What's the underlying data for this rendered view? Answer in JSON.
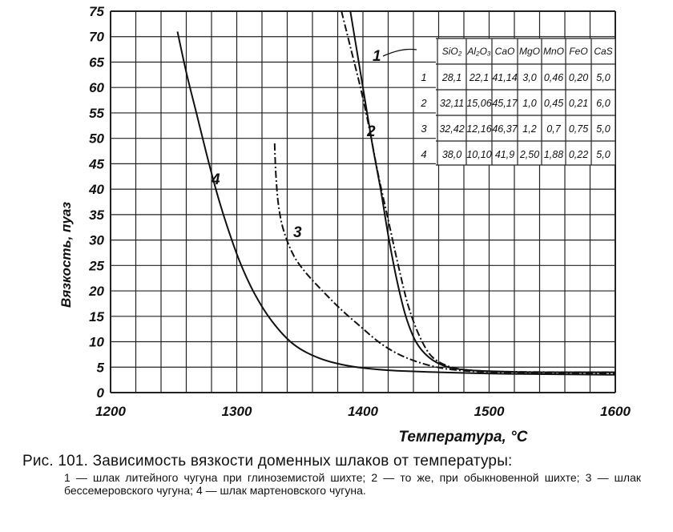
{
  "chart_data": {
    "type": "line",
    "xlabel": "Температура, °C",
    "ylabel": "Вязкость, пуаз",
    "xlim": [
      1200,
      1600
    ],
    "ylim": [
      0,
      75
    ],
    "x_ticks": [
      1200,
      1300,
      1400,
      1500,
      1600
    ],
    "y_ticks": [
      0,
      5,
      10,
      15,
      20,
      25,
      30,
      35,
      40,
      45,
      50,
      55,
      60,
      65,
      70,
      75
    ],
    "grid": true,
    "series": [
      {
        "name": "1",
        "style": "dash-dot",
        "x": [
          1383,
          1390,
          1398,
          1405,
          1412,
          1420,
          1428,
          1436,
          1445,
          1455,
          1470,
          1490,
          1520,
          1560,
          1600
        ],
        "y": [
          75,
          68,
          60,
          52,
          43,
          34,
          25,
          17,
          11,
          7,
          5,
          4.3,
          4.1,
          4.0,
          4.0
        ]
      },
      {
        "name": "2",
        "style": "solid",
        "x": [
          1390,
          1396,
          1402,
          1408,
          1414,
          1420,
          1427,
          1434,
          1442,
          1452,
          1465,
          1480,
          1500,
          1540,
          1600
        ],
        "y": [
          75,
          66,
          57,
          48,
          40,
          31,
          22,
          15,
          10,
          7,
          5.2,
          4.5,
          4.2,
          4.0,
          4.0
        ]
      },
      {
        "name": "3",
        "style": "dash-dot",
        "x": [
          1330,
          1331,
          1333,
          1337,
          1345,
          1355,
          1368,
          1382,
          1398,
          1415,
          1433,
          1455,
          1480,
          1520,
          1560,
          1600
        ],
        "y": [
          49,
          43,
          37,
          32,
          27,
          23.5,
          20,
          16.5,
          13,
          9.5,
          7,
          5.2,
          4.3,
          3.9,
          3.8,
          3.7
        ]
      },
      {
        "name": "4",
        "style": "solid",
        "x": [
          1253,
          1260,
          1268,
          1276,
          1284,
          1292,
          1302,
          1314,
          1328,
          1345,
          1365,
          1390,
          1420,
          1460,
          1510,
          1560,
          1600
        ],
        "y": [
          71,
          63,
          55,
          47,
          39.5,
          33,
          26,
          19.5,
          14,
          9.5,
          6.8,
          5.2,
          4.4,
          4.0,
          3.7,
          3.6,
          3.5
        ]
      }
    ],
    "table": {
      "columns": [
        "SiO₂",
        "Al₂O₃",
        "CaO",
        "MgO",
        "MnO",
        "FeO",
        "CaS"
      ],
      "rows": [
        {
          "label": "1",
          "values": [
            "28,1",
            "22,1",
            "41,14",
            "3,0",
            "0,46",
            "0,20",
            "5,0"
          ]
        },
        {
          "label": "2",
          "values": [
            "32,11",
            "15,06",
            "45,17",
            "1,0",
            "0,45",
            "0,21",
            "6,0"
          ]
        },
        {
          "label": "3",
          "values": [
            "32,42",
            "12,16",
            "46,37",
            "1,2",
            "0,7",
            "0,75",
            "5,0"
          ]
        },
        {
          "label": "4",
          "values": [
            "38,0",
            "10,10",
            "41,9",
            "2,50",
            "1,88",
            "0,22",
            "5,0"
          ]
        }
      ]
    }
  },
  "caption": {
    "title": "Рис. 101. Зависимость вязкости доменных шлаков от температуры:",
    "body": "1 — шлак литейного чугуна при глиноземистой шихте; 2 — то же, при обыкновенной шихте; 3 — шлак бессемеровского чугуна; 4 — шлак мартеновского чугуна."
  }
}
